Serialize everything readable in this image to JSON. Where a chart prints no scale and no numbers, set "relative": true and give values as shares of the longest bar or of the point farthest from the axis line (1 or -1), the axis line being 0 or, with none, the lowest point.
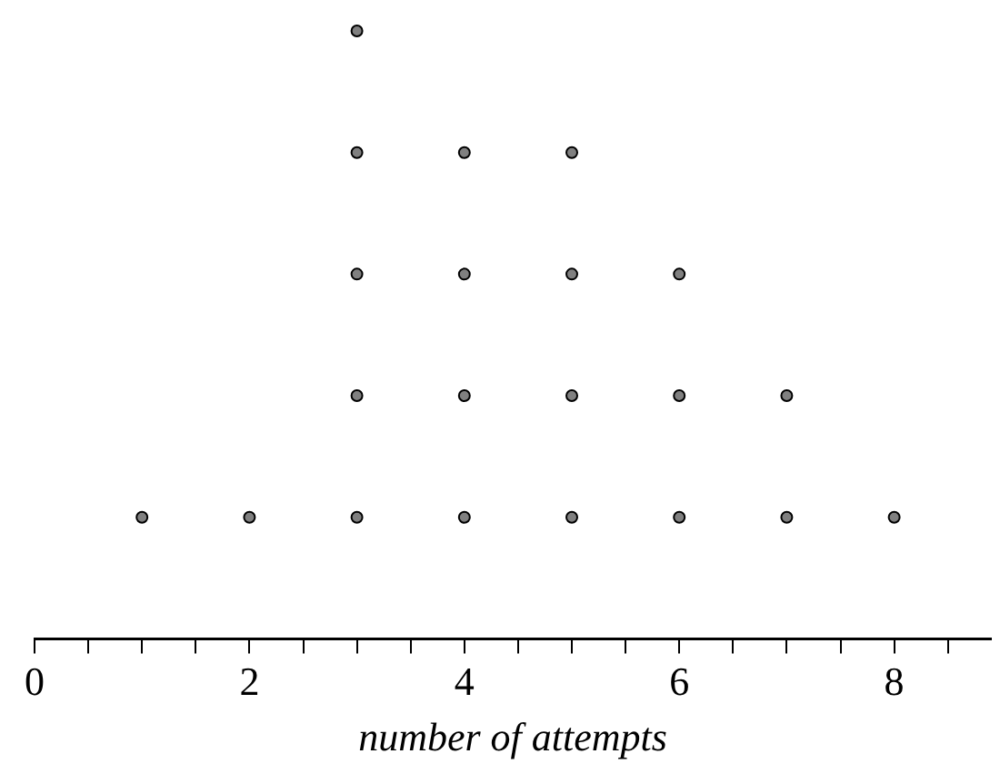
{
  "chart_data": {
    "type": "scatter",
    "xlabel": "number of attempts",
    "relative": true,
    "marker": "circle",
    "grid": false,
    "legend": false,
    "xlim": [
      0,
      8.9
    ],
    "xticks": [
      0,
      {
        "value": 0.5,
        "label": null
      },
      {
        "value": 1,
        "label": null
      },
      {
        "value": 1.5,
        "label": null
      },
      2,
      {
        "value": 2.5,
        "label": null
      },
      {
        "value": 3,
        "label": null
      },
      {
        "value": 3.5,
        "label": null
      },
      4,
      {
        "value": 4.5,
        "label": null
      },
      {
        "value": 5,
        "label": null
      },
      {
        "value": 5.5,
        "label": null
      },
      6,
      {
        "value": 6.5,
        "label": null
      },
      {
        "value": 7,
        "label": null
      },
      {
        "value": 7.5,
        "label": null
      },
      8,
      {
        "value": 8.5,
        "label": null
      }
    ],
    "series": [
      {
        "color": "#808080",
        "x": [
          1,
          2,
          3,
          3,
          3,
          3,
          3,
          4,
          4,
          4,
          4,
          5,
          5,
          5,
          5,
          6,
          6,
          6,
          7,
          7,
          8
        ],
        "values": [
          0.2,
          0.2,
          0.2,
          0.4,
          0.6,
          0.8,
          1.0,
          0.2,
          0.4,
          0.6,
          0.8,
          0.2,
          0.4,
          0.6,
          0.8,
          0.2,
          0.4,
          0.6,
          0.2,
          0.4,
          0.2
        ]
      }
    ]
  }
}
